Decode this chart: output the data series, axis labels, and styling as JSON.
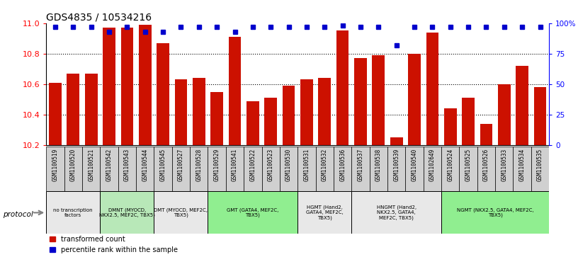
{
  "title": "GDS4835 / 10534216",
  "samples": [
    "GSM1100519",
    "GSM1100520",
    "GSM1100521",
    "GSM1100542",
    "GSM1100543",
    "GSM1100544",
    "GSM1100545",
    "GSM1100527",
    "GSM1100528",
    "GSM1100529",
    "GSM1100541",
    "GSM1100522",
    "GSM1100523",
    "GSM1100530",
    "GSM1100531",
    "GSM1100532",
    "GSM1100536",
    "GSM1100537",
    "GSM1100538",
    "GSM1100539",
    "GSM1100540",
    "GSM1102649",
    "GSM1100524",
    "GSM1100525",
    "GSM1100526",
    "GSM1100533",
    "GSM1100534",
    "GSM1100535"
  ],
  "bar_values": [
    10.61,
    10.67,
    10.67,
    10.97,
    10.97,
    10.99,
    10.87,
    10.63,
    10.64,
    10.55,
    10.91,
    10.49,
    10.51,
    10.59,
    10.63,
    10.64,
    10.95,
    10.77,
    10.79,
    10.25,
    10.8,
    10.94,
    10.44,
    10.51,
    10.34,
    10.6,
    10.72,
    10.58
  ],
  "percentile_values": [
    97,
    97,
    97,
    93,
    97,
    93,
    93,
    97,
    97,
    97,
    93,
    97,
    97,
    97,
    97,
    97,
    98,
    97,
    97,
    82,
    97,
    97,
    97,
    97,
    97,
    97,
    97,
    97
  ],
  "groups": [
    {
      "label": "no transcription\nfactors",
      "start": 0,
      "end": 2,
      "color": "#e8e8e8"
    },
    {
      "label": "DMNT (MYOCD,\nNKX2.5, MEF2C, TBX5)",
      "start": 3,
      "end": 5,
      "color": "#b8e8b8"
    },
    {
      "label": "DMT (MYOCD, MEF2C,\nTBX5)",
      "start": 6,
      "end": 8,
      "color": "#e8e8e8"
    },
    {
      "label": "GMT (GATA4, MEF2C,\nTBX5)",
      "start": 9,
      "end": 13,
      "color": "#90ee90"
    },
    {
      "label": "HGMT (Hand2,\nGATA4, MEF2C,\nTBX5)",
      "start": 14,
      "end": 16,
      "color": "#e8e8e8"
    },
    {
      "label": "HNGMT (Hand2,\nNKX2.5, GATA4,\nMEF2C, TBX5)",
      "start": 17,
      "end": 21,
      "color": "#e8e8e8"
    },
    {
      "label": "NGMT (NKX2.5, GATA4, MEF2C,\nTBX5)",
      "start": 22,
      "end": 27,
      "color": "#90ee90"
    }
  ],
  "ylim": [
    10.2,
    11.0
  ],
  "yticks": [
    10.2,
    10.4,
    10.6,
    10.8,
    11.0
  ],
  "right_yticks": [
    0,
    25,
    50,
    75,
    100
  ],
  "bar_color": "#cc1100",
  "percentile_color": "#0000cc",
  "xtick_bg": "#d0d0d0"
}
